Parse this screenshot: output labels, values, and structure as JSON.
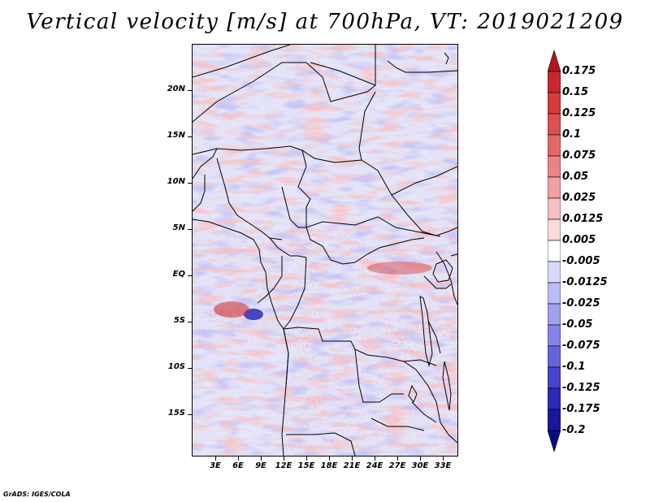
{
  "title": "Vertical velocity [m/s] at 700hPa, VT: 2019021209",
  "latitude_labels": [
    "20N",
    "15N",
    "10N",
    "5N",
    "EQ",
    "5S",
    "10S",
    "15S"
  ],
  "longitude_labels": [
    "3E",
    "6E",
    "9E",
    "12E",
    "15E",
    "18E",
    "21E",
    "24E",
    "27E",
    "30E",
    "33E"
  ],
  "colorbar": {
    "labels": [
      "0.175",
      "0.15",
      "0.125",
      "0.1",
      "0.075",
      "0.05",
      "0.025",
      "0.0125",
      "0.005",
      "-0.005",
      "-0.0125",
      "-0.025",
      "-0.05",
      "-0.075",
      "-0.1",
      "-0.125",
      "-0.175",
      "-0.2"
    ],
    "colors": [
      "#b4141e",
      "#c8282d",
      "#d63c3c",
      "#dc5050",
      "#e26868",
      "#ea8484",
      "#f0a0a0",
      "#f6c0c0",
      "#fbdcdc",
      "#ffffff",
      "#d8d8fa",
      "#bcbcf4",
      "#a0a0ee",
      "#8484e6",
      "#6464da",
      "#4444cc",
      "#2a2ab8",
      "#18189e",
      "#0a0a80"
    ]
  },
  "footer": "GrADS: IGES/COLA"
}
